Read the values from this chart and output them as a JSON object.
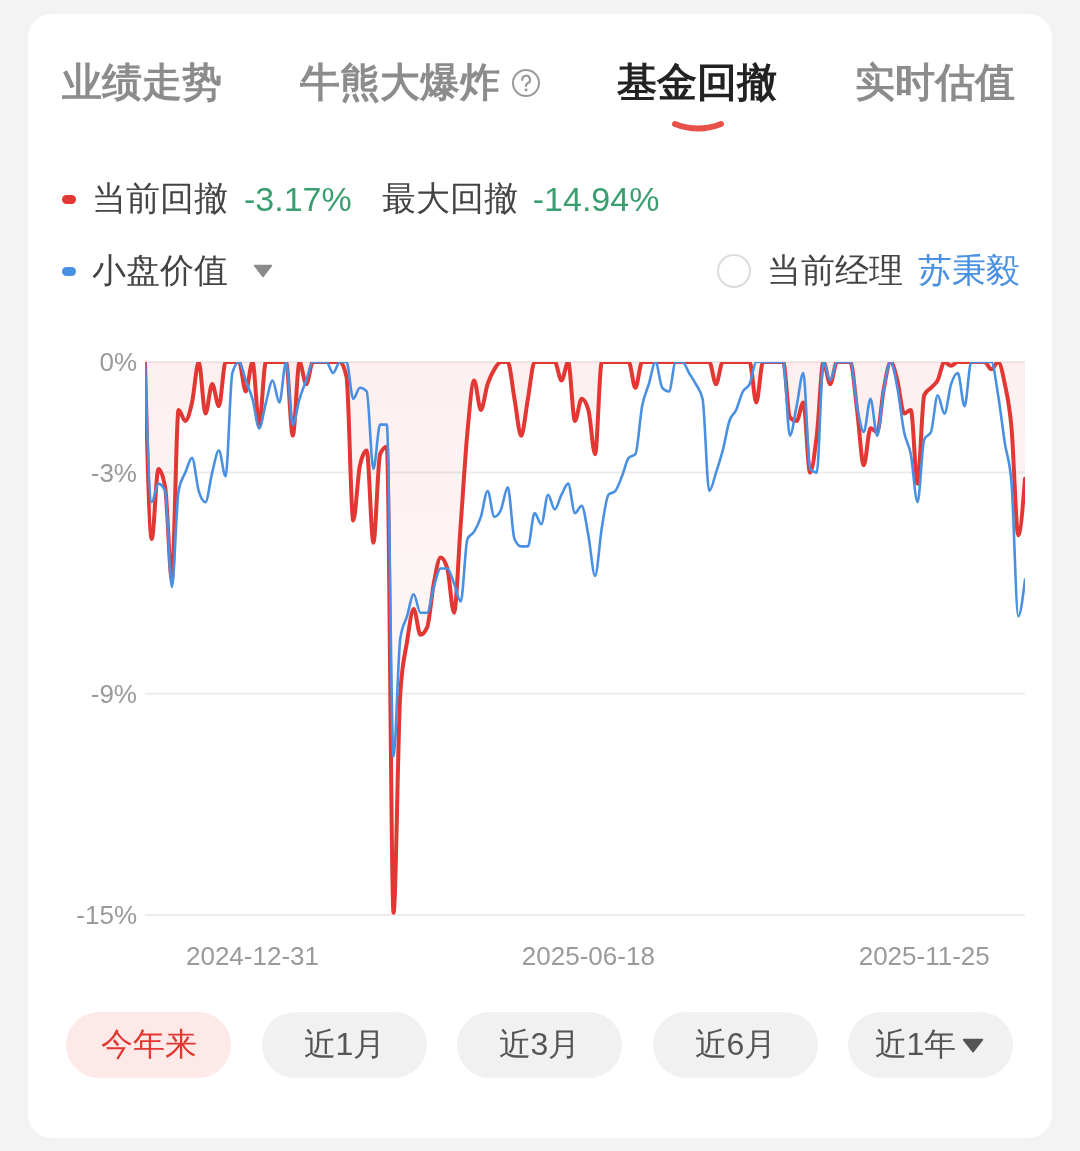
{
  "chart_data": {
    "type": "line",
    "categories": [
      null,
      null,
      null,
      null,
      null,
      null,
      null,
      null,
      null,
      null,
      null,
      null,
      null,
      null,
      null,
      null,
      "2024-12-31",
      null,
      null,
      null,
      null,
      null,
      null,
      null,
      null,
      null,
      null,
      null,
      null,
      null,
      null,
      null,
      null,
      null,
      null,
      null,
      null,
      null,
      null,
      null,
      null,
      null,
      null,
      null,
      null,
      null,
      null,
      null,
      null,
      null,
      null,
      null,
      null,
      null,
      null,
      null,
      null,
      null,
      null,
      null,
      null,
      null,
      null,
      null,
      null,
      null,
      "2025-06-18",
      null,
      null,
      null,
      null,
      null,
      null,
      null,
      null,
      null,
      null,
      null,
      null,
      null,
      null,
      null,
      null,
      null,
      null,
      null,
      null,
      null,
      null,
      null,
      null,
      null,
      null,
      null,
      null,
      null,
      null,
      null,
      null,
      null,
      null,
      null,
      null,
      null,
      null,
      null,
      null,
      null,
      null,
      null,
      null,
      null,
      null,
      null,
      null,
      null,
      "2025-11-25",
      null,
      null,
      null,
      null,
      null,
      null,
      null,
      null,
      null,
      null,
      null,
      null,
      null,
      null,
      null
    ],
    "series": [
      {
        "name": "当前回撤",
        "type": "area",
        "color": "#e23732",
        "values": [
          0,
          -4.8,
          -2.9,
          -3.4,
          -5.9,
          -1.3,
          -1.6,
          -1.1,
          0,
          -1.4,
          -0.6,
          -1.2,
          0,
          0,
          0,
          -0.8,
          0,
          -1.7,
          0,
          0,
          0,
          0,
          -2.0,
          0,
          -0.6,
          0,
          0,
          0,
          0,
          0,
          -0.4,
          -4.3,
          -2.8,
          -2.4,
          -4.9,
          -2.5,
          -2.3,
          -14.94,
          -9.0,
          -7.6,
          -6.7,
          -7.4,
          -7.2,
          -6.0,
          -5.3,
          -5.6,
          -6.8,
          -4.4,
          -1.9,
          -0.5,
          -1.3,
          -0.6,
          -0.2,
          0,
          0,
          -1.0,
          -2.0,
          -1.0,
          0,
          0,
          0,
          0,
          -0.5,
          0,
          -1.6,
          -1.0,
          -1.3,
          -2.5,
          0,
          0,
          0,
          0,
          0,
          -0.7,
          0,
          0,
          0,
          0,
          0,
          0,
          0,
          0,
          0,
          0,
          0,
          -0.6,
          0,
          0,
          0,
          0,
          0,
          -1.1,
          0,
          0,
          0,
          0,
          -1.5,
          -1.6,
          -1.1,
          -3.0,
          -2.0,
          0,
          -0.6,
          0,
          0,
          0,
          -1.3,
          -2.8,
          -1.8,
          -1.9,
          -0.7,
          0,
          -0.5,
          -1.4,
          -1.3,
          -3.3,
          -0.9,
          -0.7,
          -0.5,
          0,
          -0.1,
          0,
          0,
          0,
          0,
          0,
          -0.2,
          0,
          -0.6,
          -1.8,
          -4.7,
          -3.17
        ]
      },
      {
        "name": "小盘价值",
        "color": "#4a90e2",
        "values": [
          0,
          -3.8,
          -3.3,
          -3.5,
          -6.1,
          -3.5,
          -3.0,
          -2.6,
          -3.5,
          -3.8,
          -3.0,
          -2.4,
          -3.1,
          -0.3,
          0,
          -0.5,
          -1.0,
          -1.8,
          -1.1,
          -0.5,
          -1.1,
          0,
          -1.7,
          -1.0,
          -0.5,
          0,
          0,
          0,
          -0.3,
          0,
          0,
          -1.0,
          -0.7,
          -0.8,
          -2.9,
          -1.7,
          -1.7,
          -10.7,
          -7.5,
          -6.9,
          -6.3,
          -6.8,
          -6.8,
          -6.1,
          -5.6,
          -5.6,
          -6.0,
          -6.5,
          -4.8,
          -4.6,
          -4.2,
          -3.5,
          -4.2,
          -4.0,
          -3.4,
          -4.8,
          -5.0,
          -5.0,
          -4.1,
          -4.4,
          -3.6,
          -4.0,
          -3.6,
          -3.3,
          -4.1,
          -3.9,
          -4.7,
          -5.8,
          -4.5,
          -3.6,
          -3.5,
          -3.1,
          -2.6,
          -2.5,
          -1.2,
          -0.6,
          0,
          -0.7,
          -0.8,
          0,
          0,
          -0.3,
          -0.6,
          -1.0,
          -3.5,
          -3.0,
          -2.4,
          -1.6,
          -1.3,
          -0.8,
          -0.6,
          0,
          0,
          0,
          0,
          0,
          -2.0,
          -1.2,
          -0.3,
          -2.9,
          -3.0,
          0,
          -0.5,
          0,
          0,
          0,
          -1.2,
          -1.9,
          -1.0,
          -2.0,
          -0.7,
          0,
          -0.7,
          -1.9,
          -2.5,
          -3.8,
          -2.1,
          -1.9,
          -0.9,
          -1.4,
          -0.6,
          -0.3,
          -1.2,
          0,
          0,
          0,
          0,
          -0.9,
          -2.2,
          -3.3,
          -6.9,
          -5.9
        ]
      }
    ],
    "ylim": [
      -15,
      0
    ],
    "yticks": [
      {
        "value": 0,
        "label": "0%"
      },
      {
        "value": -3,
        "label": "-3%"
      },
      {
        "value": -9,
        "label": "-9%"
      },
      {
        "value": -15,
        "label": "-15%"
      }
    ],
    "grid": "y",
    "legend": "top left",
    "annotations": [
      "业绩走势",
      "牛熊大爆炸",
      "基金回撤",
      "实时估值",
      "-3.17%",
      "最大回撤",
      "-14.94%",
      "当前经理",
      "苏秉毅",
      "今年来",
      "近1月",
      "近3月",
      "近6月",
      "近1年"
    ]
  }
}
